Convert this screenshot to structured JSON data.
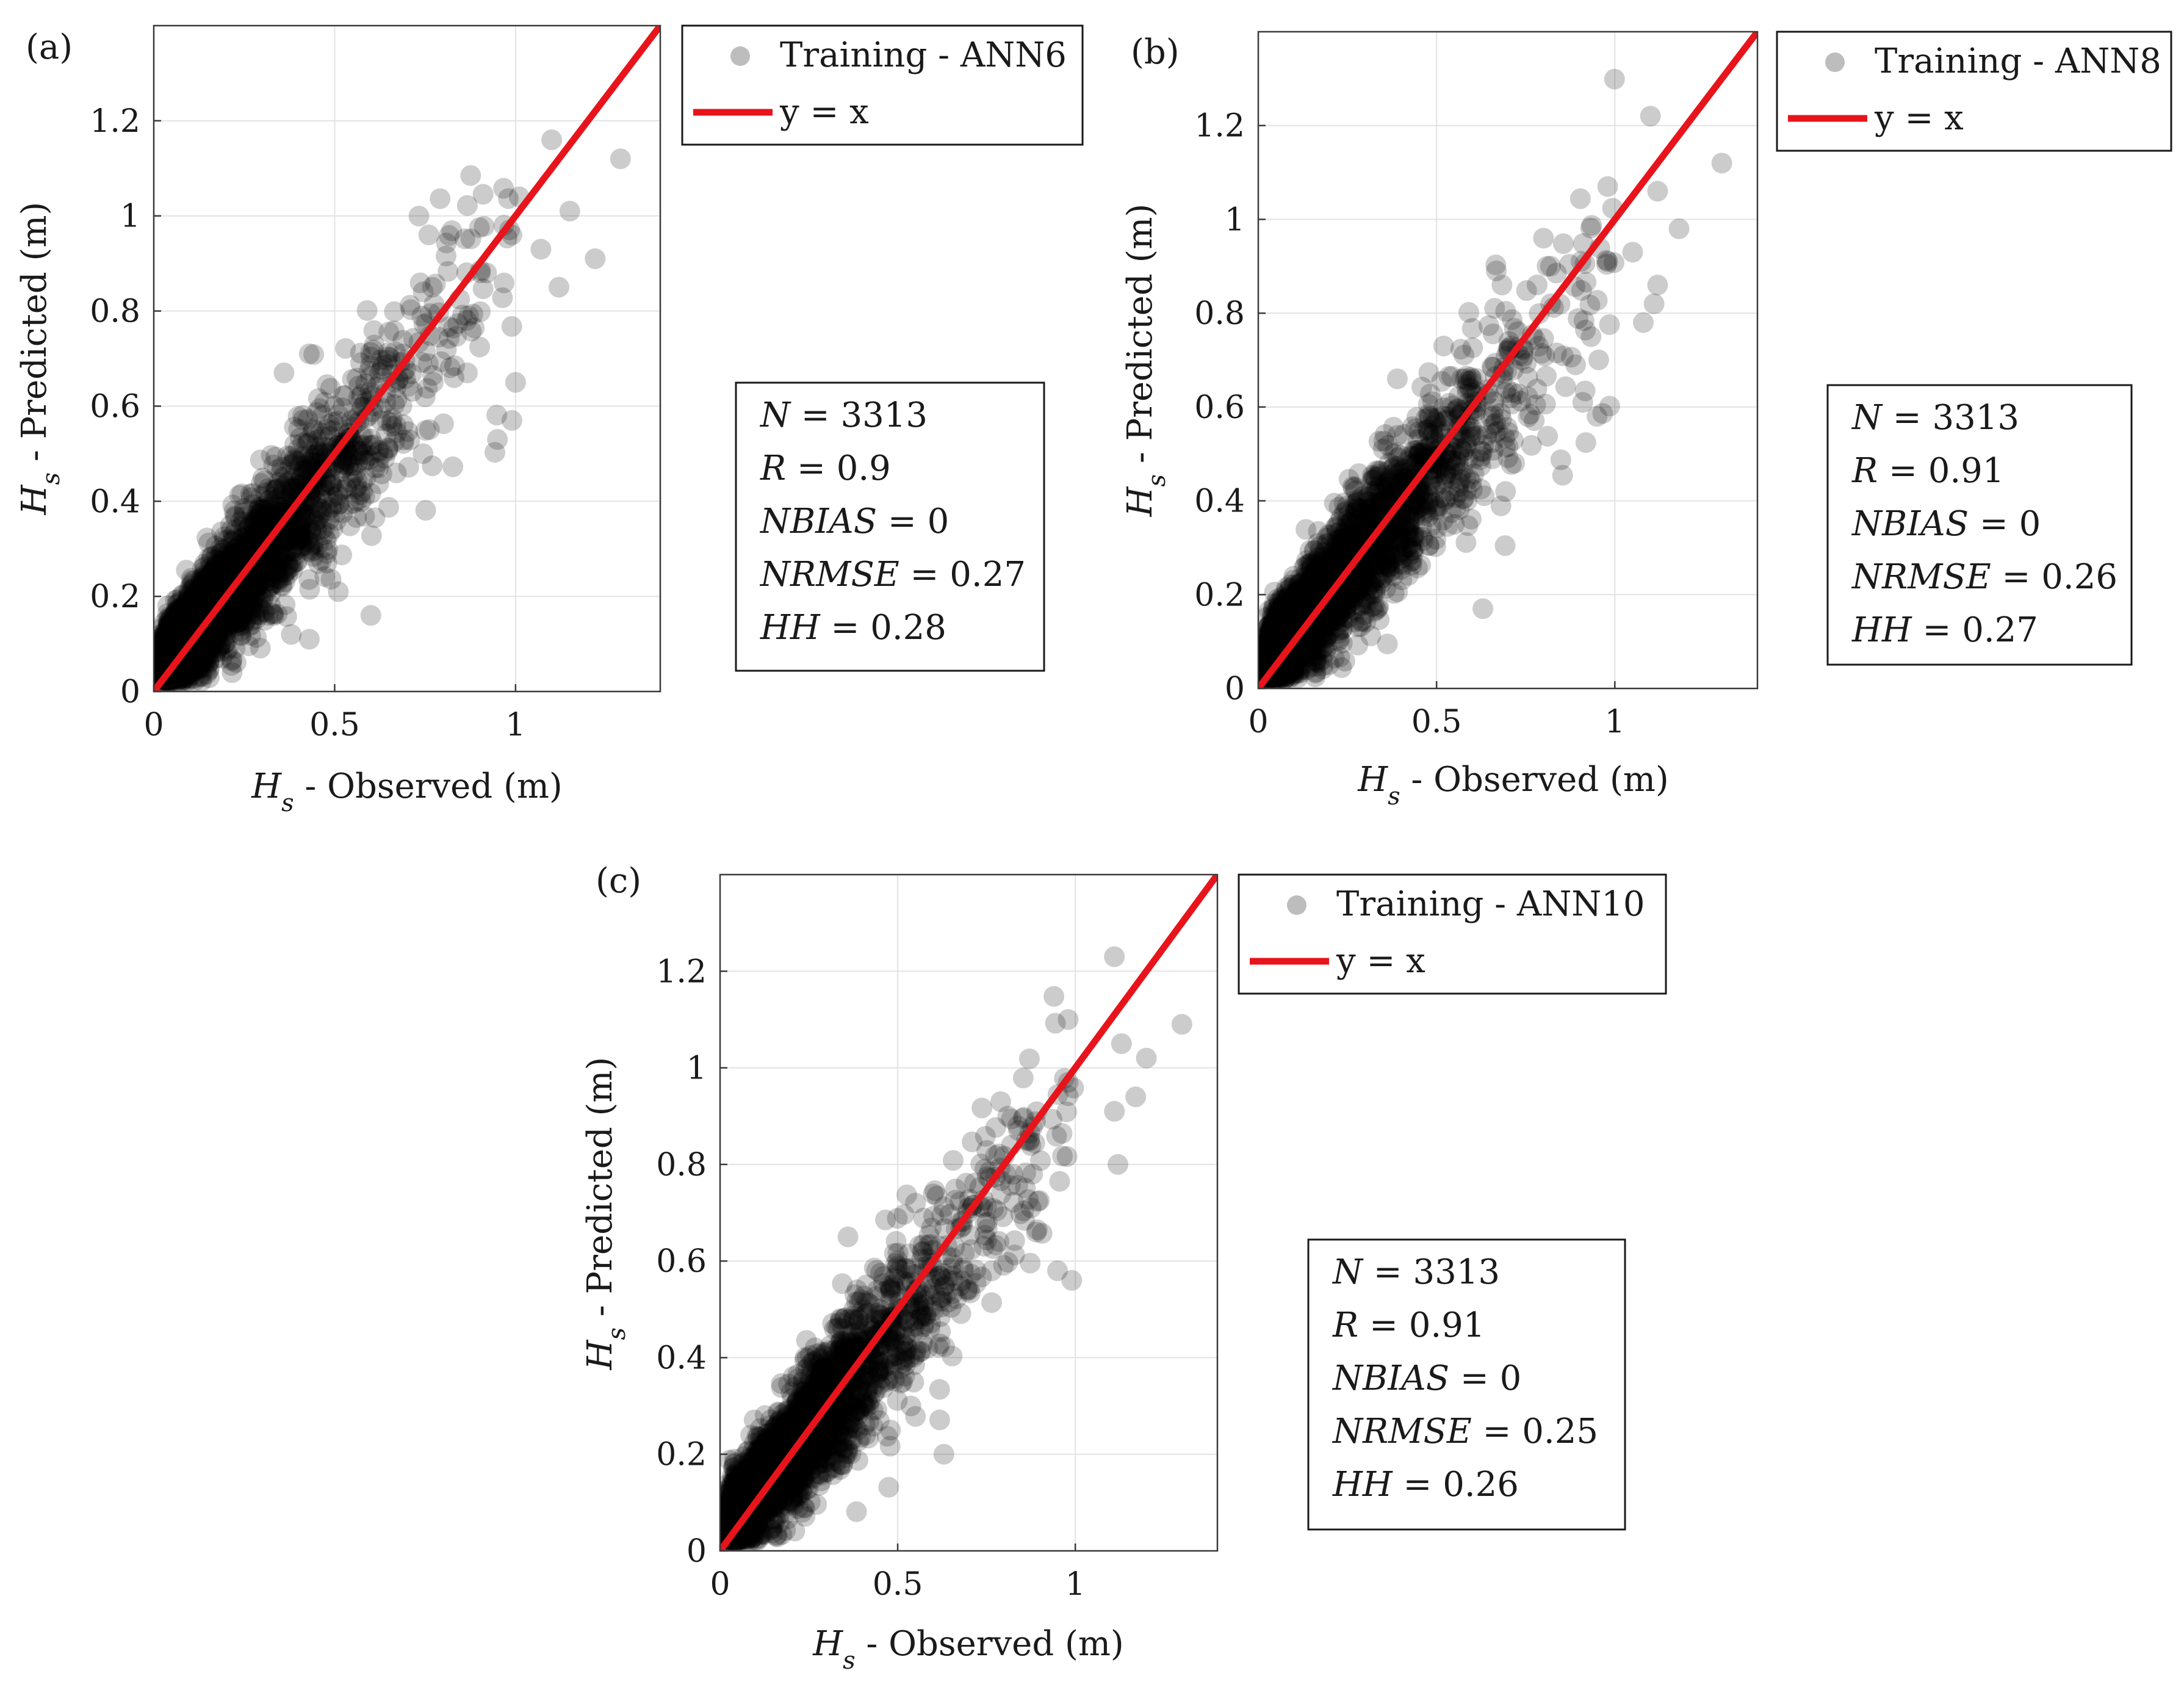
{
  "colors": {
    "scatter": "#000000",
    "scatter_legend": "#bdbdbd",
    "line": "#e8141b",
    "grid": "#e3e3e3",
    "axis": "#3a3a3a"
  },
  "chart_data": [
    {
      "type": "scatter",
      "panel_label": "(a)",
      "xlabel_symbol": "H",
      "xlabel_sub": "s",
      "xlabel_text": " - Observed (m)",
      "ylabel_symbol": "H",
      "ylabel_sub": "s",
      "ylabel_text": " - Predicted (m)",
      "xlim": [
        0,
        1.4
      ],
      "ylim": [
        0,
        1.4
      ],
      "xticks": [
        0,
        0.5,
        1
      ],
      "xtick_labels": [
        "0",
        "0.5",
        "1"
      ],
      "yticks": [
        0,
        0.2,
        0.4,
        0.6,
        0.8,
        1,
        1.2
      ],
      "ytick_labels": [
        "0",
        "0.2",
        "0.4",
        "0.6",
        "0.8",
        "1",
        "1.2"
      ],
      "grid": true,
      "legend": {
        "placement": "outside-top-right",
        "entries": [
          "Training - ANN6",
          "y = x"
        ]
      },
      "series": [
        {
          "name": "Training - ANN6",
          "kind": "scatter",
          "n_points": 3313,
          "correlation": 0.9,
          "seed": 11,
          "highlight_points": [
            [
              1.29,
              1.12
            ],
            [
              1.1,
              1.16
            ],
            [
              1.15,
              1.01
            ],
            [
              1.22,
              0.91
            ],
            [
              1.12,
              0.85
            ],
            [
              1.01,
              1.04
            ],
            [
              0.99,
              0.96
            ],
            [
              1.07,
              0.93
            ],
            [
              1.0,
              0.65
            ],
            [
              0.99,
              0.57
            ],
            [
              0.95,
              0.53
            ],
            [
              0.83,
              0.66
            ],
            [
              0.87,
              0.79
            ],
            [
              0.92,
              0.88
            ],
            [
              0.76,
              0.96
            ],
            [
              0.77,
              0.85
            ],
            [
              0.6,
              0.16
            ],
            [
              0.51,
              0.21
            ],
            [
              0.43,
              0.11
            ],
            [
              0.38,
              0.12
            ],
            [
              0.36,
              0.67
            ],
            [
              0.43,
              0.71
            ]
          ]
        },
        {
          "name": "y = x",
          "kind": "line",
          "x": [
            0,
            1.4
          ],
          "y": [
            0,
            1.4
          ]
        }
      ],
      "stats": [
        {
          "label": "N",
          "value": "3313"
        },
        {
          "label": "R",
          "value": "0.9"
        },
        {
          "label": "NBIAS",
          "value": "0"
        },
        {
          "label": "NRMSE",
          "value": "0.27"
        },
        {
          "label": "HH",
          "value": "0.28"
        }
      ]
    },
    {
      "type": "scatter",
      "panel_label": "(b)",
      "xlabel_symbol": "H",
      "xlabel_sub": "s",
      "xlabel_text": " - Observed (m)",
      "ylabel_symbol": "H",
      "ylabel_sub": "s",
      "ylabel_text": " - Predicted (m)",
      "xlim": [
        0,
        1.4
      ],
      "ylim": [
        0,
        1.4
      ],
      "xticks": [
        0,
        0.5,
        1
      ],
      "xtick_labels": [
        "0",
        "0.5",
        "1"
      ],
      "yticks": [
        0,
        0.2,
        0.4,
        0.6,
        0.8,
        1,
        1.2
      ],
      "ytick_labels": [
        "0",
        "0.2",
        "0.4",
        "0.6",
        "0.8",
        "1",
        "1.2"
      ],
      "grid": true,
      "legend": {
        "placement": "outside-top-right",
        "entries": [
          "Training - ANN8",
          "y = x"
        ]
      },
      "series": [
        {
          "name": "Training - ANN8",
          "kind": "scatter",
          "n_points": 3313,
          "correlation": 0.91,
          "seed": 23,
          "highlight_points": [
            [
              1.3,
              1.12
            ],
            [
              1.1,
              1.22
            ],
            [
              1.12,
              1.06
            ],
            [
              1.18,
              0.98
            ],
            [
              1.12,
              0.86
            ],
            [
              1.11,
              0.82
            ],
            [
              1.05,
              0.93
            ],
            [
              0.98,
              1.07
            ],
            [
              0.98,
              0.91
            ],
            [
              1.08,
              0.78
            ],
            [
              0.95,
              0.58
            ],
            [
              0.91,
              0.61
            ],
            [
              0.89,
              0.69
            ],
            [
              0.82,
              0.82
            ],
            [
              0.81,
              0.9
            ],
            [
              0.8,
              0.96
            ],
            [
              0.63,
              0.17
            ],
            [
              0.55,
              0.35
            ],
            [
              0.42,
              0.3
            ],
            [
              0.39,
              0.66
            ],
            [
              0.52,
              0.73
            ]
          ]
        },
        {
          "name": "y = x",
          "kind": "line",
          "x": [
            0,
            1.4
          ],
          "y": [
            0,
            1.4
          ]
        }
      ],
      "stats": [
        {
          "label": "N",
          "value": "3313"
        },
        {
          "label": "R",
          "value": "0.91"
        },
        {
          "label": "NBIAS",
          "value": "0"
        },
        {
          "label": "NRMSE",
          "value": "0.26"
        },
        {
          "label": "HH",
          "value": "0.27"
        }
      ]
    },
    {
      "type": "scatter",
      "panel_label": "(c)",
      "xlabel_symbol": "H",
      "xlabel_sub": "s",
      "xlabel_text": " - Observed (m)",
      "ylabel_symbol": "H",
      "ylabel_sub": "s",
      "ylabel_text": " - Predicted (m)",
      "xlim": [
        0,
        1.4
      ],
      "ylim": [
        0,
        1.4
      ],
      "xticks": [
        0,
        0.5,
        1
      ],
      "xtick_labels": [
        "0",
        "0.5",
        "1"
      ],
      "yticks": [
        0,
        0.2,
        0.4,
        0.6,
        0.8,
        1,
        1.2
      ],
      "ytick_labels": [
        "0",
        "0.2",
        "0.4",
        "0.6",
        "0.8",
        "1",
        "1.2"
      ],
      "grid": true,
      "legend": {
        "placement": "outside-top-right",
        "entries": [
          "Training - ANN10",
          "y = x"
        ]
      },
      "series": [
        {
          "name": "Training - ANN10",
          "kind": "scatter",
          "n_points": 3313,
          "correlation": 0.91,
          "seed": 37,
          "highlight_points": [
            [
              1.3,
              1.09
            ],
            [
              1.11,
              1.23
            ],
            [
              1.13,
              1.05
            ],
            [
              1.2,
              1.02
            ],
            [
              1.17,
              0.94
            ],
            [
              1.11,
              0.91
            ],
            [
              1.12,
              0.8
            ],
            [
              0.98,
              1.1
            ],
            [
              0.98,
              0.97
            ],
            [
              0.99,
              0.56
            ],
            [
              0.95,
              0.58
            ],
            [
              0.89,
              0.66
            ],
            [
              0.88,
              0.78
            ],
            [
              0.82,
              0.84
            ],
            [
              0.81,
              0.9
            ],
            [
              0.79,
              0.93
            ],
            [
              0.63,
              0.2
            ],
            [
              0.48,
              0.25
            ],
            [
              0.41,
              0.24
            ],
            [
              0.36,
              0.65
            ],
            [
              0.55,
              0.72
            ]
          ]
        },
        {
          "name": "y = x",
          "kind": "line",
          "x": [
            0,
            1.4
          ],
          "y": [
            0,
            1.4
          ]
        }
      ],
      "stats": [
        {
          "label": "N",
          "value": "3313"
        },
        {
          "label": "R",
          "value": "0.91"
        },
        {
          "label": "NBIAS",
          "value": "0"
        },
        {
          "label": "NRMSE",
          "value": "0.25"
        },
        {
          "label": "HH",
          "value": "0.26"
        }
      ]
    }
  ]
}
